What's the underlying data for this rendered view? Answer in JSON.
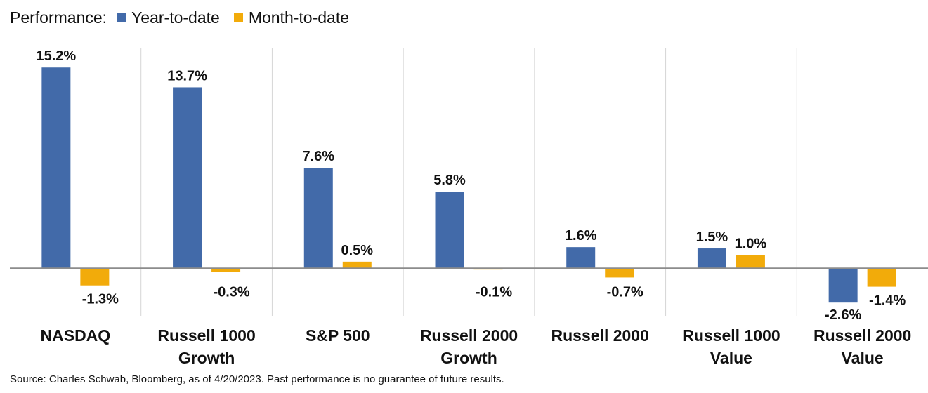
{
  "legend": {
    "prefix": "Performance:"
  },
  "source": "Source: Charles Schwab, Bloomberg, as of 4/20/2023. Past performance is no guarantee of future results.",
  "chart_data": {
    "type": "bar",
    "categories": [
      [
        "NASDAQ"
      ],
      [
        "Russell 1000",
        "Growth"
      ],
      [
        "S&P 500"
      ],
      [
        "Russell 2000",
        "Growth"
      ],
      [
        "Russell 2000"
      ],
      [
        "Russell 1000",
        "Value"
      ],
      [
        "Russell 2000",
        "Value"
      ]
    ],
    "series": [
      {
        "name": "Year-to-date",
        "color": "#426aa9",
        "values": [
          15.2,
          13.7,
          7.6,
          5.8,
          1.6,
          1.5,
          -2.6
        ],
        "labels": [
          "15.2%",
          "13.7%",
          "7.6%",
          "5.8%",
          "1.6%",
          "1.5%",
          "-2.6%"
        ]
      },
      {
        "name": "Month-to-date",
        "color": "#f2ab0a",
        "values": [
          -1.3,
          -0.3,
          0.5,
          -0.1,
          -0.7,
          1.0,
          -1.4
        ],
        "labels": [
          "-1.3%",
          "-0.3%",
          "0.5%",
          "-0.1%",
          "-0.7%",
          "1.0%",
          "-1.4%"
        ]
      }
    ],
    "ylim": [
      -3.6,
      16.7
    ],
    "unit": "%",
    "grid": false,
    "legend_position": "top-left"
  }
}
